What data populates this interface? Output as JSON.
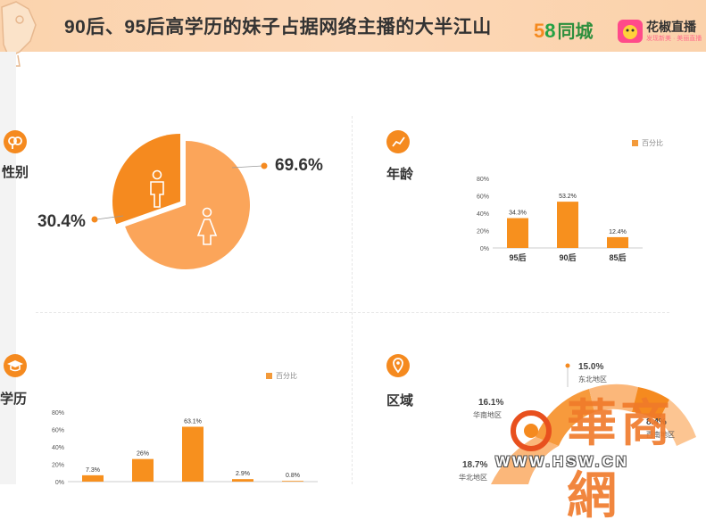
{
  "banner": {
    "title": "90后、95后高学历的妹子占据网络主播的大半江山",
    "logo58_five": "5",
    "logo58_eight": "8",
    "logo58_text": "同城",
    "huajiao_name": "花椒直播",
    "huajiao_sub": "发现新美 · 美丽直播"
  },
  "sections": {
    "gender": "性别",
    "age": "年龄",
    "education": "学历",
    "region": "区域"
  },
  "colors": {
    "accent": "#f58a1f",
    "light": "#fba55a",
    "bar": "#f7901e"
  },
  "chart_data": [
    {
      "type": "pie",
      "labels": [
        "69.6%",
        "30.4%"
      ],
      "values": [
        69.6,
        30.4
      ],
      "icons": [
        "female-icon",
        "male-icon"
      ]
    },
    {
      "type": "bar",
      "legend": "百分比",
      "categories": [
        "95后",
        "90后",
        "85后"
      ],
      "values": [
        34.3,
        53.2,
        12.4
      ],
      "labels": [
        "34.3%",
        "53.2%",
        "12.4%"
      ],
      "yticks": [
        "80%",
        "60%",
        "40%",
        "20%",
        "0%"
      ],
      "ylim": [
        0,
        80
      ]
    },
    {
      "type": "bar",
      "legend": "百分比",
      "categories": [
        "",
        "",
        "",
        "",
        ""
      ],
      "values": [
        7.3,
        26,
        63.1,
        2.9,
        0.8
      ],
      "labels": [
        "7.3%",
        "26%",
        "63.1%",
        "2.9%",
        "0.8%"
      ],
      "yticks": [
        "80%",
        "60%",
        "40%",
        "20%",
        "0%"
      ],
      "ylim": [
        0,
        80
      ]
    },
    {
      "type": "pie",
      "entries": [
        {
          "value": "15.0%",
          "name": "东北地区"
        },
        {
          "value": "16.1%",
          "name": "华南地区"
        },
        {
          "value": "18.7%",
          "name": "华北地区"
        },
        {
          "value": "8.4%",
          "name": "西南地区"
        }
      ]
    }
  ],
  "watermark": {
    "text": "華商網",
    "url": "WWW.HSW.CN"
  }
}
